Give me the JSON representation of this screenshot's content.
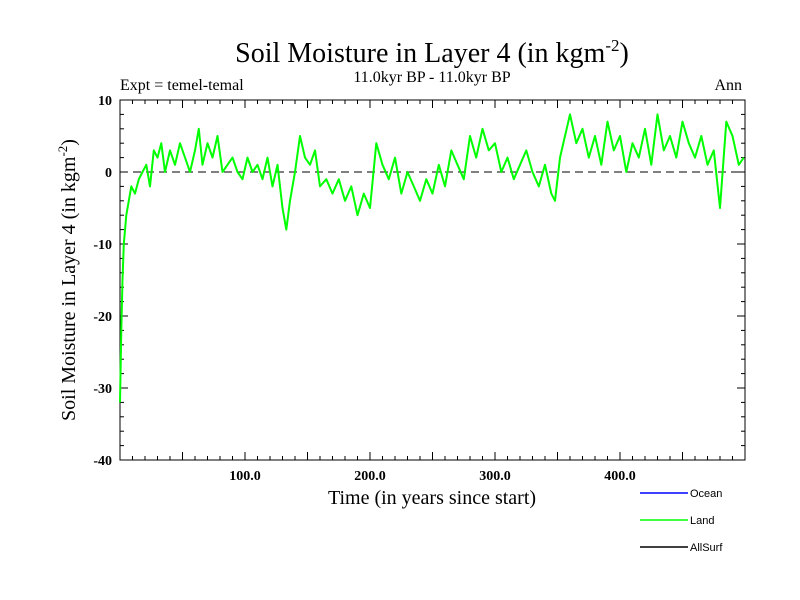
{
  "chart_data": {
    "type": "line",
    "title": "Soil Moisture in Layer 4 (in kgm",
    "title_sup": "-2",
    "title_close": ")",
    "subtitle": "11.0kyr BP - 11.0kyr BP",
    "expt_label": "Expt = temel-temal",
    "season_label": "Ann",
    "xlabel": "Time (in years since start)",
    "ylabel": "Soil Moisture in Layer 4 (in kgm",
    "ylabel_sup": "-2",
    "ylabel_close": ")",
    "xlim": [
      0,
      500
    ],
    "ylim": [
      -40,
      10
    ],
    "x_ticks": [
      {
        "value": 100,
        "label": "100.0"
      },
      {
        "value": 200,
        "label": "200.0"
      },
      {
        "value": 300,
        "label": "300.0"
      },
      {
        "value": 400,
        "label": "400.0"
      }
    ],
    "y_ticks": [
      {
        "value": 10,
        "label": "10"
      },
      {
        "value": 0,
        "label": "0"
      },
      {
        "value": -10,
        "label": "-10"
      },
      {
        "value": -20,
        "label": "-20"
      },
      {
        "value": -30,
        "label": "-30"
      },
      {
        "value": -40,
        "label": "-40"
      }
    ],
    "zero_line": 0,
    "legend_position": "bottom-right",
    "legend": [
      {
        "name": "Ocean",
        "color": "#0000ff"
      },
      {
        "name": "Land",
        "color": "#00ff00"
      },
      {
        "name": "AllSurf",
        "color": "#000000"
      }
    ],
    "series": [
      {
        "name": "Land",
        "color": "#00ff00",
        "x": [
          0,
          1,
          2,
          3,
          5,
          7,
          9,
          12,
          15,
          18,
          21,
          24,
          27,
          30,
          33,
          36,
          40,
          44,
          48,
          52,
          56,
          60,
          63,
          66,
          70,
          74,
          78,
          82,
          86,
          90,
          94,
          98,
          102,
          106,
          110,
          114,
          118,
          122,
          126,
          130,
          133,
          136,
          140,
          144,
          148,
          152,
          156,
          160,
          165,
          170,
          175,
          180,
          185,
          190,
          195,
          200,
          205,
          210,
          215,
          220,
          225,
          230,
          235,
          240,
          245,
          250,
          255,
          260,
          265,
          270,
          275,
          280,
          285,
          290,
          295,
          300,
          305,
          310,
          315,
          320,
          325,
          330,
          335,
          340,
          345,
          348,
          352,
          356,
          360,
          365,
          370,
          375,
          380,
          385,
          390,
          395,
          400,
          405,
          410,
          415,
          420,
          425,
          430,
          435,
          440,
          445,
          450,
          455,
          460,
          465,
          470,
          475,
          480,
          485,
          490,
          495,
          499
        ],
        "values": [
          -32,
          -22,
          -15,
          -10,
          -6,
          -4,
          -2,
          -3,
          -1,
          0,
          1,
          -2,
          3,
          2,
          4,
          0,
          3,
          1,
          4,
          2,
          0,
          3,
          6,
          1,
          4,
          2,
          5,
          0,
          1,
          2,
          0,
          -1,
          2,
          0,
          1,
          -1,
          2,
          -2,
          1,
          -5,
          -8,
          -4,
          0,
          5,
          2,
          1,
          3,
          -2,
          -1,
          -3,
          -1,
          -4,
          -2,
          -6,
          -3,
          -5,
          4,
          1,
          -1,
          2,
          -3,
          0,
          -2,
          -4,
          -1,
          -3,
          1,
          -2,
          3,
          1,
          -1,
          5,
          2,
          6,
          3,
          4,
          0,
          2,
          -1,
          1,
          3,
          0,
          -2,
          1,
          -3,
          -4,
          2,
          5,
          8,
          4,
          6,
          2,
          5,
          1,
          7,
          3,
          5,
          0,
          4,
          2,
          6,
          1,
          8,
          3,
          5,
          2,
          7,
          4,
          2,
          5,
          1,
          3,
          -5,
          7,
          5,
          1,
          2
        ]
      }
    ]
  }
}
